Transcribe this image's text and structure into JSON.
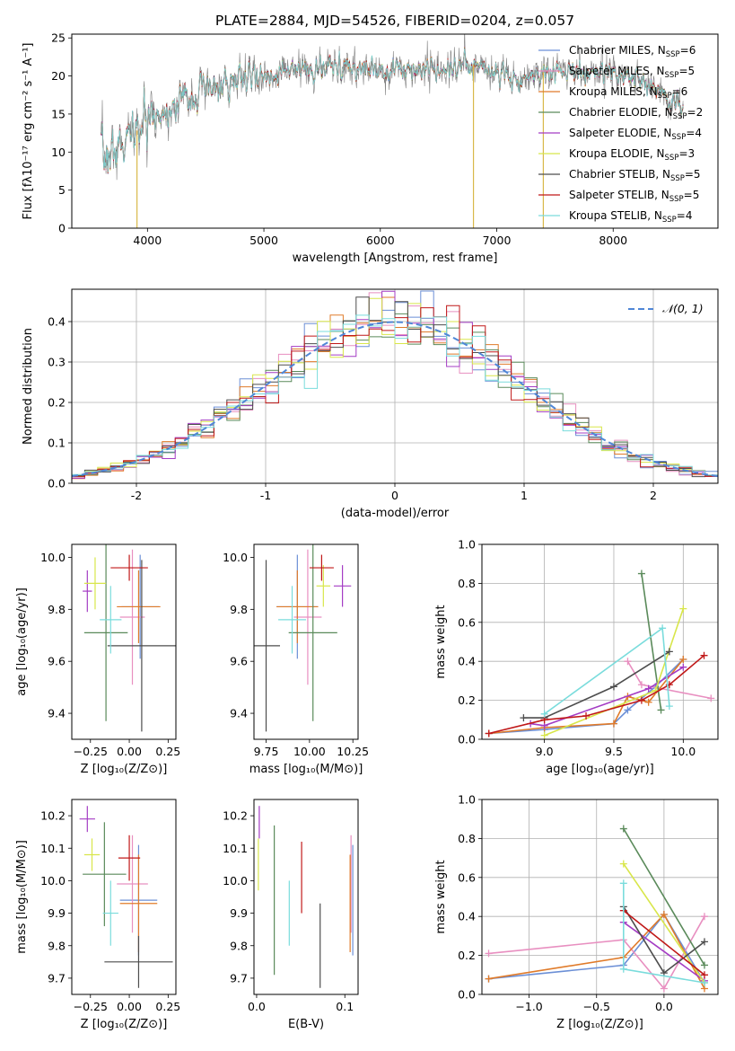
{
  "figure": {
    "title": "PLATE=2884, MJD=54526, FIBERID=0204, z=0.057"
  },
  "series": [
    {
      "name": "Chabrier MILES, N",
      "sub": "SSP",
      "suffix": "=6",
      "color": "#6b8fd6"
    },
    {
      "name": "Salpeter MILES, N",
      "sub": "SSP",
      "suffix": "=5",
      "color": "#e88fc0"
    },
    {
      "name": "Kroupa MILES, N",
      "sub": "SSP",
      "suffix": "=6",
      "color": "#e07b2a"
    },
    {
      "name": "Chabrier ELODIE, N",
      "sub": "SSP",
      "suffix": "=2",
      "color": "#5a8a5a"
    },
    {
      "name": "Salpeter ELODIE, N",
      "sub": "SSP",
      "suffix": "=4",
      "color": "#a43cc4"
    },
    {
      "name": "Kroupa ELODIE, N",
      "sub": "SSP",
      "suffix": "=3",
      "color": "#d8e64a"
    },
    {
      "name": "Chabrier STELIB, N",
      "sub": "SSP",
      "suffix": "=5",
      "color": "#4d4d4d"
    },
    {
      "name": "Salpeter STELIB, N",
      "sub": "SSP",
      "suffix": "=5",
      "color": "#c01818"
    },
    {
      "name": "Kroupa STELIB, N",
      "sub": "SSP",
      "suffix": "=4",
      "color": "#7adcdc"
    }
  ],
  "chart_data": [
    {
      "id": "spectrum",
      "type": "line",
      "xlabel": "wavelength [Angstrom, rest frame]",
      "ylabel": "Flux [fλ10⁻¹⁷ erg cm⁻² s⁻¹ A⁻¹]",
      "xlim": [
        3350,
        8900
      ],
      "ylim": [
        0,
        25.5
      ],
      "xticks": [
        4000,
        5000,
        6000,
        7000,
        8000
      ],
      "yticks": [
        0,
        5,
        10,
        15,
        20,
        25
      ],
      "continuum": [
        [
          3600,
          9
        ],
        [
          3800,
          11
        ],
        [
          3950,
          13.5
        ],
        [
          4100,
          15
        ],
        [
          4300,
          17
        ],
        [
          4500,
          18
        ],
        [
          4800,
          19.5
        ],
        [
          5200,
          20.5
        ],
        [
          5600,
          21
        ],
        [
          6000,
          21
        ],
        [
          6400,
          21
        ],
        [
          6800,
          21.5
        ],
        [
          7000,
          20.5
        ],
        [
          7200,
          19.5
        ],
        [
          7400,
          20.5
        ],
        [
          7800,
          20.5
        ],
        [
          8200,
          19.5
        ],
        [
          8400,
          18
        ],
        [
          8600,
          16
        ]
      ],
      "data_line": {
        "name": "data",
        "color": "#808080"
      },
      "spikes": [
        {
          "x": 3910,
          "ymin": 0
        },
        {
          "x": 6800,
          "ymin": 0
        },
        {
          "x": 7400,
          "ymin": 0
        }
      ],
      "legend_loc": "upper right"
    },
    {
      "id": "residuals",
      "type": "histogram",
      "xlabel": "(data-model)/error",
      "ylabel": "Normed distribution",
      "xlim": [
        -2.5,
        2.5
      ],
      "ylim": [
        0,
        0.48
      ],
      "xticks": [
        -2,
        -1,
        0,
        1,
        2
      ],
      "yticks": [
        0,
        0.1,
        0.2,
        0.3,
        0.4
      ],
      "bin_width": 0.1,
      "reference": {
        "label": "𝒩(0, 1)",
        "color": "#4f86d6",
        "dashed": true
      },
      "grid": true
    },
    {
      "id": "age_vs_Z",
      "type": "errorbar",
      "xlabel": "Z [log₁₀(Z/Z⊙)]",
      "ylabel": "age  [log₁₀(age/yr)]",
      "xlim": [
        -0.37,
        0.3
      ],
      "ylim": [
        9.3,
        10.05
      ],
      "xticks": [
        -0.25,
        0,
        0.25
      ],
      "xticklabels": [
        "−0.25",
        "0.00",
        "0.25"
      ],
      "yticks": [
        9.4,
        9.6,
        9.8,
        10.0
      ],
      "points": [
        {
          "x": 0.07,
          "y": 9.81,
          "xerr": 0.12,
          "yerr": 0.2
        },
        {
          "x": 0.02,
          "y": 9.77,
          "xerr": 0.08,
          "yerr": 0.26
        },
        {
          "x": 0.06,
          "y": 9.81,
          "xerr": 0.14,
          "yerr": 0.14
        },
        {
          "x": -0.15,
          "y": 9.71,
          "xerr": 0.14,
          "yerr": 0.34
        },
        {
          "x": -0.27,
          "y": 9.87,
          "xerr": 0.03,
          "yerr": 0.08
        },
        {
          "x": -0.22,
          "y": 9.9,
          "xerr": 0.07,
          "yerr": 0.1
        },
        {
          "x": 0.08,
          "y": 9.66,
          "xerr": 0.22,
          "yerr": 0.33
        },
        {
          "x": 0.0,
          "y": 9.96,
          "xerr": 0.12,
          "yerr": 0.05
        },
        {
          "x": -0.12,
          "y": 9.76,
          "xerr": 0.07,
          "yerr": 0.13
        }
      ]
    },
    {
      "id": "age_vs_mass",
      "type": "errorbar",
      "xlabel": "mass [log₁₀(M/M⊙)]",
      "ylabel": "",
      "xlim": [
        9.68,
        10.28
      ],
      "ylim": [
        9.3,
        10.05
      ],
      "xticks": [
        9.75,
        10.0,
        10.25
      ],
      "xticklabels": [
        "9.75",
        "10.00",
        "10.25"
      ],
      "yticks": [
        9.4,
        9.6,
        9.8,
        10.0
      ],
      "points": [
        {
          "x": 9.93,
          "y": 9.81,
          "xerr": 0.12,
          "yerr": 0.2
        },
        {
          "x": 9.99,
          "y": 9.77,
          "xerr": 0.08,
          "yerr": 0.26
        },
        {
          "x": 9.93,
          "y": 9.81,
          "xerr": 0.12,
          "yerr": 0.14
        },
        {
          "x": 10.02,
          "y": 9.71,
          "xerr": 0.14,
          "yerr": 0.34
        },
        {
          "x": 10.19,
          "y": 9.89,
          "xerr": 0.05,
          "yerr": 0.08
        },
        {
          "x": 10.08,
          "y": 9.89,
          "xerr": 0.04,
          "yerr": 0.08
        },
        {
          "x": 9.75,
          "y": 9.66,
          "xerr": 0.08,
          "yerr": 0.33
        },
        {
          "x": 10.07,
          "y": 9.96,
          "xerr": 0.07,
          "yerr": 0.05
        },
        {
          "x": 9.9,
          "y": 9.76,
          "xerr": 0.08,
          "yerr": 0.13
        }
      ]
    },
    {
      "id": "weight_vs_age",
      "type": "line",
      "xlabel": "age  [log₁₀(age/yr)]",
      "ylabel": "mass weight",
      "xlim": [
        8.55,
        10.25
      ],
      "ylim": [
        0,
        1.0
      ],
      "xticks": [
        9.0,
        9.5,
        10.0
      ],
      "xticklabels": [
        "9.0",
        "9.5",
        "10.0"
      ],
      "yticks": [
        0,
        0.2,
        0.4,
        0.6,
        0.8,
        1.0
      ],
      "yticklabels": [
        "0.0",
        "0.2",
        "0.4",
        "0.6",
        "0.8",
        "1.0"
      ],
      "grid": true,
      "lines": [
        [
          [
            8.6,
            0.03
          ],
          [
            9.0,
            0.05
          ],
          [
            9.5,
            0.08
          ],
          [
            9.6,
            0.15
          ],
          [
            9.8,
            0.27
          ],
          [
            10.0,
            0.41
          ]
        ],
        [
          [
            9.6,
            0.4
          ],
          [
            9.7,
            0.28
          ],
          [
            10.2,
            0.21
          ]
        ],
        [
          [
            8.6,
            0.03
          ],
          [
            9.0,
            0.06
          ],
          [
            9.5,
            0.08
          ],
          [
            9.6,
            0.22
          ],
          [
            9.75,
            0.19
          ],
          [
            10.0,
            0.41
          ]
        ],
        [
          [
            9.7,
            0.85
          ],
          [
            9.84,
            0.15
          ]
        ],
        [
          [
            8.9,
            0.08
          ],
          [
            9.0,
            0.07
          ],
          [
            9.75,
            0.26
          ],
          [
            10.0,
            0.37
          ]
        ],
        [
          [
            9.0,
            0.02
          ],
          [
            9.8,
            0.25
          ],
          [
            10.0,
            0.67
          ]
        ],
        [
          [
            8.85,
            0.11
          ],
          [
            9.0,
            0.11
          ],
          [
            9.5,
            0.27
          ],
          [
            9.9,
            0.45
          ]
        ],
        [
          [
            8.6,
            0.03
          ],
          [
            9.0,
            0.1
          ],
          [
            9.3,
            0.12
          ],
          [
            9.7,
            0.2
          ],
          [
            9.9,
            0.28
          ],
          [
            10.15,
            0.43
          ]
        ],
        [
          [
            9.0,
            0.13
          ],
          [
            9.85,
            0.57
          ],
          [
            9.9,
            0.17
          ]
        ]
      ]
    },
    {
      "id": "mass_vs_Z",
      "type": "errorbar",
      "xlabel": "Z [log₁₀(Z/Z⊙)]",
      "ylabel": "mass [log₁₀(M/M⊙)]",
      "xlim": [
        -0.37,
        0.3
      ],
      "ylim": [
        9.65,
        10.25
      ],
      "xticks": [
        -0.25,
        0,
        0.25
      ],
      "xticklabels": [
        "−0.25",
        "0.00",
        "0.25"
      ],
      "yticks": [
        9.7,
        9.8,
        9.9,
        10.0,
        10.1,
        10.2
      ],
      "points": [
        {
          "x": 0.06,
          "y": 9.94,
          "xerr": 0.12,
          "yerr": 0.17
        },
        {
          "x": 0.02,
          "y": 9.99,
          "xerr": 0.1,
          "yerr": 0.15
        },
        {
          "x": 0.06,
          "y": 9.93,
          "xerr": 0.12,
          "yerr": 0.15
        },
        {
          "x": -0.16,
          "y": 10.02,
          "xerr": 0.14,
          "yerr": 0.16
        },
        {
          "x": -0.27,
          "y": 10.19,
          "xerr": 0.05,
          "yerr": 0.04
        },
        {
          "x": -0.24,
          "y": 10.08,
          "xerr": 0.05,
          "yerr": 0.05
        },
        {
          "x": 0.06,
          "y": 9.75,
          "xerr": 0.22,
          "yerr": 0.08
        },
        {
          "x": 0.0,
          "y": 10.07,
          "xerr": 0.07,
          "yerr": 0.07
        },
        {
          "x": -0.12,
          "y": 9.9,
          "xerr": 0.05,
          "yerr": 0.1
        }
      ]
    },
    {
      "id": "mass_vs_ebv",
      "type": "errorbar",
      "xlabel": "E(B-V)",
      "ylabel": "",
      "xlim": [
        -0.003,
        0.115
      ],
      "ylim": [
        9.65,
        10.25
      ],
      "xticks": [
        0.0,
        0.1
      ],
      "xticklabels": [
        "0.0",
        "0.1"
      ],
      "yticks": [
        9.7,
        9.8,
        9.9,
        10.0,
        10.1,
        10.2
      ],
      "points": [
        {
          "x": 0.109,
          "y": 9.94,
          "xerr": 0,
          "yerr": 0.17
        },
        {
          "x": 0.107,
          "y": 9.99,
          "xerr": 0,
          "yerr": 0.15
        },
        {
          "x": 0.106,
          "y": 9.93,
          "xerr": 0,
          "yerr": 0.15
        },
        {
          "x": 0.02,
          "y": 9.94,
          "xerr": 0,
          "yerr": 0.23
        },
        {
          "x": 0.003,
          "y": 10.18,
          "xerr": 0,
          "yerr": 0.05
        },
        {
          "x": 0.002,
          "y": 10.05,
          "xerr": 0,
          "yerr": 0.08
        },
        {
          "x": 0.072,
          "y": 9.8,
          "xerr": 0,
          "yerr": 0.13
        },
        {
          "x": 0.051,
          "y": 10.01,
          "xerr": 0,
          "yerr": 0.11
        },
        {
          "x": 0.037,
          "y": 9.9,
          "xerr": 0,
          "yerr": 0.1
        }
      ]
    },
    {
      "id": "weight_vs_Z",
      "type": "line",
      "xlabel": "Z [log₁₀(Z/Z⊙)]",
      "ylabel": "mass weight",
      "xlim": [
        -1.35,
        0.4
      ],
      "ylim": [
        0,
        1.0
      ],
      "xticks": [
        -1.0,
        -0.5,
        0.0
      ],
      "xticklabels": [
        "−1.0",
        "−0.5",
        "0.0"
      ],
      "yticks": [
        0,
        0.2,
        0.4,
        0.6,
        0.8,
        1.0
      ],
      "yticklabels": [
        "0.0",
        "0.2",
        "0.4",
        "0.6",
        "0.8",
        "1.0"
      ],
      "grid": true,
      "lines": [
        [
          [
            -1.3,
            0.08
          ],
          [
            -0.3,
            0.15
          ],
          [
            0.0,
            0.41
          ],
          [
            0.3,
            0.06
          ]
        ],
        [
          [
            -1.3,
            0.21
          ],
          [
            -0.3,
            0.28
          ],
          [
            0.0,
            0.03
          ],
          [
            0.3,
            0.4
          ]
        ],
        [
          [
            -1.3,
            0.08
          ],
          [
            -0.3,
            0.19
          ],
          [
            0.0,
            0.41
          ],
          [
            0.3,
            0.03
          ]
        ],
        [
          [
            -0.3,
            0.85
          ],
          [
            0.3,
            0.15
          ]
        ],
        [
          [
            -0.3,
            0.37
          ],
          [
            0.3,
            0.07
          ]
        ],
        [
          [
            -0.3,
            0.67
          ],
          [
            0.3,
            0.06
          ]
        ],
        [
          [
            -0.3,
            0.45
          ],
          [
            0.0,
            0.11
          ],
          [
            0.3,
            0.27
          ]
        ],
        [
          [
            -0.3,
            0.43
          ],
          [
            0.3,
            0.1
          ]
        ],
        [
          [
            -0.3,
            0.57
          ],
          [
            -0.3,
            0.13
          ],
          [
            0.3,
            0.06
          ]
        ]
      ]
    }
  ]
}
